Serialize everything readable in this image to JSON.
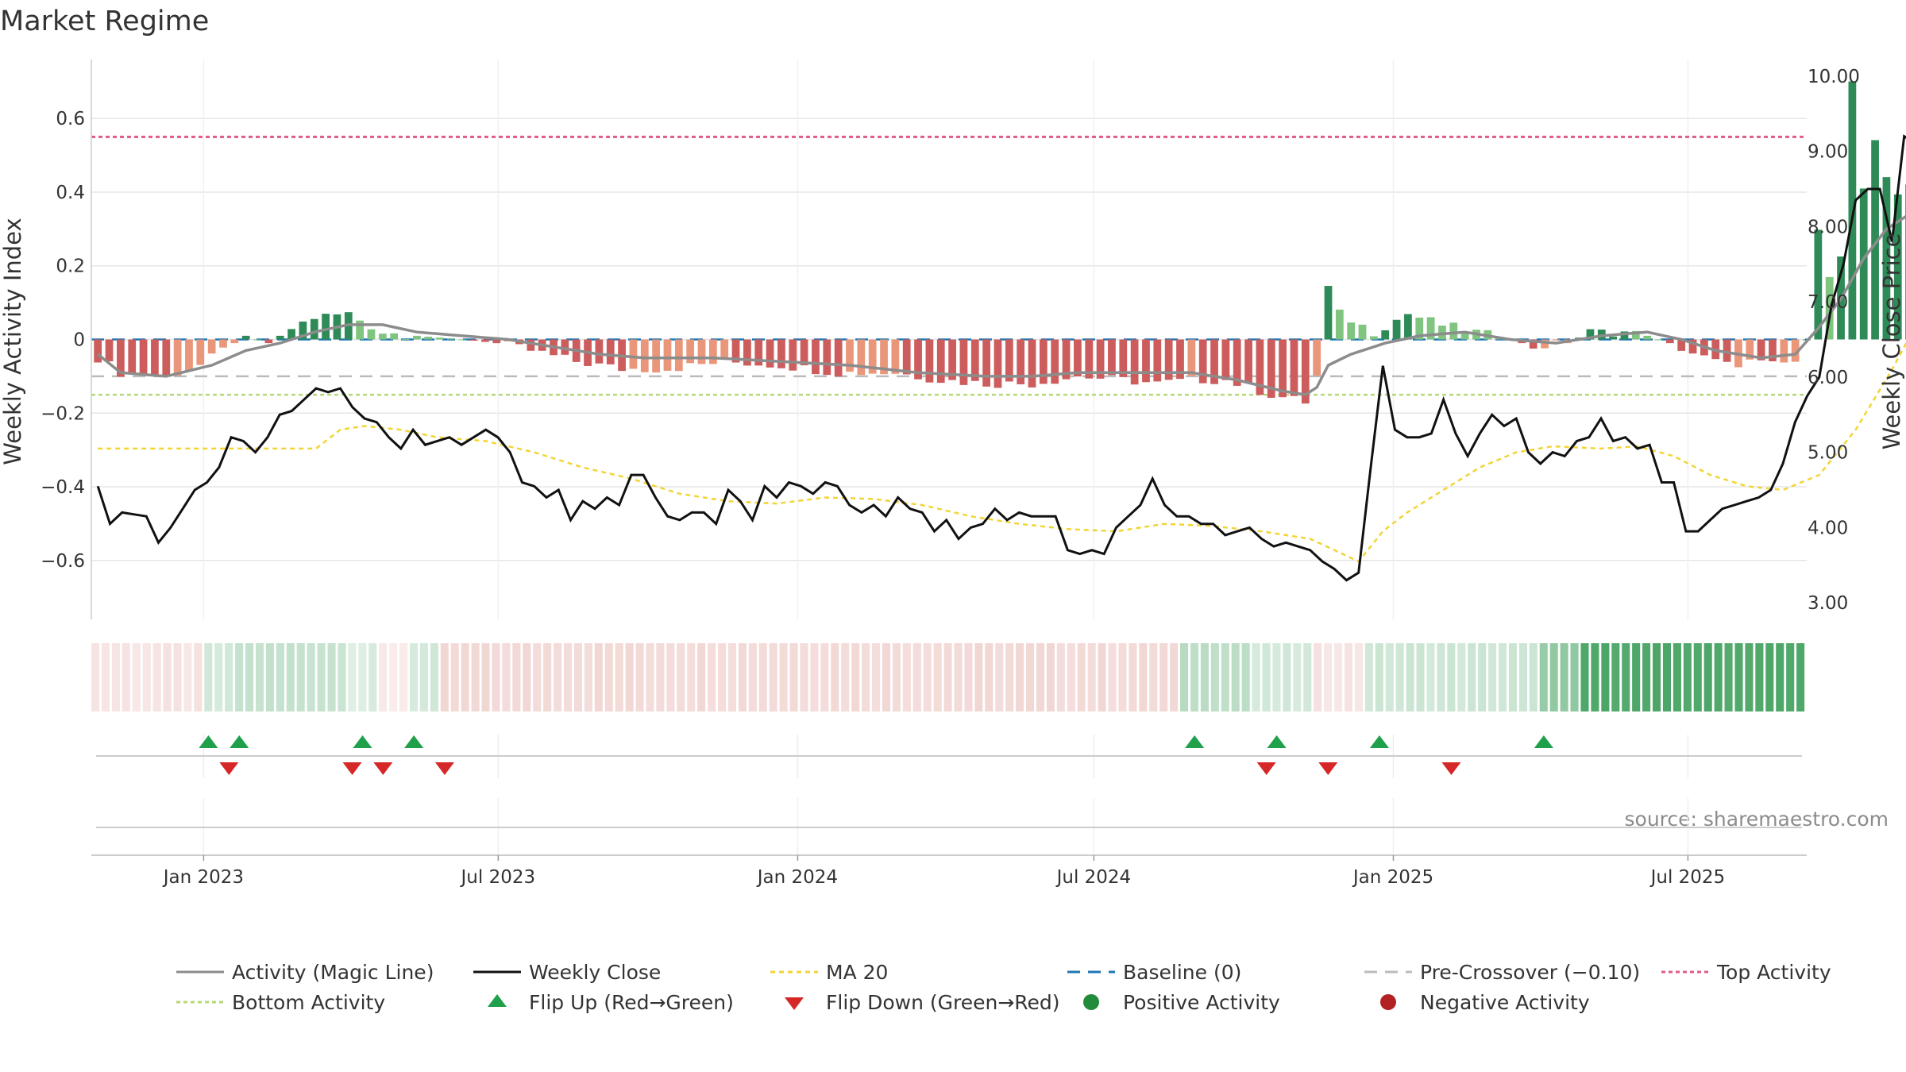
{
  "title": "Market Regime",
  "source": "source: sharemaestro.com",
  "colors": {
    "pos_dark": "#2e8b57",
    "pos_light": "#7fc47f",
    "neg_dark": "#cd5c5c",
    "neg_light": "#e9967a",
    "magic": "#8c8c8c",
    "close": "#111111",
    "ma": "#f2d535",
    "baseline": "#1f77b4",
    "pre": "#bbbbbb",
    "top": "#e05a8a",
    "bottom": "#b5d977",
    "flip_up": "#1fa04a",
    "flip_down": "#d62728",
    "regime_pos": "#3d9e5a",
    "regime_neg": "#cd6b60"
  },
  "legend": {
    "magic": "Activity (Magic Line)",
    "close": "Weekly Close",
    "ma": "MA 20",
    "baseline": "Baseline (0)",
    "pre": "Pre-Crossover (−0.10)",
    "top": "Top Activity",
    "bottom": "Bottom Activity",
    "flip_up": "Flip Up (Red→Green)",
    "flip_down": "Flip Down (Green→Red)",
    "positive": "Positive Activity",
    "negative": "Negative Activity"
  },
  "chart_data": {
    "type": "bar",
    "ylabel_left": "Weekly Activity Index",
    "ylabel_right": "Weekly Close Price",
    "yticks_left": [
      "0.6",
      "0.4",
      "0.2",
      "0",
      "−0.2",
      "−0.4",
      "−0.6"
    ],
    "ytick_values_left": [
      0.6,
      0.4,
      0.2,
      0,
      -0.2,
      -0.4,
      -0.6
    ],
    "yticks_right": [
      "10.00",
      "9.00",
      "8.00",
      "7.00",
      "6.00",
      "5.00",
      "4.00",
      "3.00"
    ],
    "ytick_values_right": [
      10,
      9,
      8,
      7,
      6,
      5,
      4,
      3
    ],
    "ylim_left": [
      -0.76,
      0.76
    ],
    "ylim_right": [
      2.78,
      10.22
    ],
    "xlim": [
      "2022-10-24",
      "2025-09-12"
    ],
    "xticks": [
      "Jan 2023",
      "Jul 2023",
      "Jan 2024",
      "Jul 2024",
      "Jan 2025",
      "Jul 2025"
    ],
    "xtick_dates": [
      "2023-01-01",
      "2023-07-01",
      "2024-01-01",
      "2024-07-01",
      "2025-01-01",
      "2025-07-01"
    ],
    "lines": {
      "baseline": 0,
      "pre_crossover": -0.1,
      "top": 0.55,
      "bottom": -0.15
    },
    "grid": true,
    "start_week": "2022-10-28",
    "activity_anchors": [
      [
        0,
        -0.05
      ],
      [
        2,
        -0.09
      ],
      [
        6,
        -0.1
      ],
      [
        9,
        -0.07
      ],
      [
        11,
        -0.03
      ],
      [
        13,
        0.01
      ],
      [
        15,
        -0.01
      ],
      [
        17,
        0.03
      ],
      [
        19,
        0.06
      ],
      [
        22,
        0.07
      ],
      [
        25,
        0.02
      ],
      [
        28,
        0.01
      ],
      [
        32,
        0.0
      ],
      [
        35,
        -0.01
      ],
      [
        38,
        -0.03
      ],
      [
        42,
        -0.06
      ],
      [
        46,
        -0.08
      ],
      [
        50,
        -0.08
      ],
      [
        55,
        -0.06
      ],
      [
        60,
        -0.07
      ],
      [
        65,
        -0.09
      ],
      [
        70,
        -0.09
      ],
      [
        74,
        -0.11
      ],
      [
        78,
        -0.12
      ],
      [
        82,
        -0.12
      ],
      [
        86,
        -0.1
      ],
      [
        90,
        -0.11
      ],
      [
        93,
        -0.12
      ],
      [
        96,
        -0.11
      ],
      [
        99,
        -0.11
      ],
      [
        103,
        -0.15
      ],
      [
        106,
        -0.17
      ],
      [
        107,
        -0.1
      ],
      [
        108,
        0.14
      ],
      [
        109,
        0.07
      ],
      [
        112,
        0.02
      ],
      [
        115,
        0.07
      ],
      [
        118,
        0.04
      ],
      [
        121,
        0.02
      ],
      [
        124,
        0.0
      ],
      [
        126,
        -0.02
      ],
      [
        129,
        -0.01
      ],
      [
        131,
        0.02
      ],
      [
        134,
        0.02
      ],
      [
        136,
        0.01
      ],
      [
        138,
        -0.01
      ],
      [
        141,
        -0.05
      ],
      [
        143,
        -0.07
      ],
      [
        145,
        -0.06
      ],
      [
        147,
        -0.07
      ],
      [
        149,
        -0.06
      ],
      [
        150,
        0.0
      ],
      [
        151,
        0.31
      ],
      [
        152,
        0.18
      ],
      [
        153,
        0.22
      ],
      [
        154,
        0.7
      ],
      [
        155,
        0.4
      ],
      [
        156,
        0.53
      ],
      [
        157,
        0.44
      ],
      [
        158,
        0.4
      ],
      [
        160,
        0.45
      ],
      [
        161,
        0.52
      ],
      [
        162,
        0.5
      ],
      [
        163,
        0.49
      ],
      [
        164,
        0.38
      ],
      [
        165,
        0.4
      ],
      [
        166,
        0.44
      ]
    ],
    "magic_anchors": [
      [
        0,
        -0.04
      ],
      [
        2,
        -0.09
      ],
      [
        6,
        -0.1
      ],
      [
        10,
        -0.07
      ],
      [
        13,
        -0.03
      ],
      [
        16,
        -0.01
      ],
      [
        19,
        0.02
      ],
      [
        22,
        0.04
      ],
      [
        25,
        0.04
      ],
      [
        28,
        0.02
      ],
      [
        32,
        0.01
      ],
      [
        36,
        0.0
      ],
      [
        40,
        -0.02
      ],
      [
        44,
        -0.04
      ],
      [
        48,
        -0.05
      ],
      [
        54,
        -0.05
      ],
      [
        60,
        -0.06
      ],
      [
        66,
        -0.07
      ],
      [
        72,
        -0.09
      ],
      [
        78,
        -0.1
      ],
      [
        82,
        -0.1
      ],
      [
        86,
        -0.09
      ],
      [
        90,
        -0.09
      ],
      [
        96,
        -0.09
      ],
      [
        100,
        -0.11
      ],
      [
        104,
        -0.14
      ],
      [
        106,
        -0.15
      ],
      [
        107,
        -0.13
      ],
      [
        108,
        -0.07
      ],
      [
        110,
        -0.04
      ],
      [
        113,
        -0.01
      ],
      [
        116,
        0.01
      ],
      [
        120,
        0.02
      ],
      [
        124,
        0.0
      ],
      [
        128,
        -0.01
      ],
      [
        132,
        0.01
      ],
      [
        136,
        0.02
      ],
      [
        139,
        0.0
      ],
      [
        142,
        -0.03
      ],
      [
        146,
        -0.05
      ],
      [
        149,
        -0.04
      ],
      [
        151,
        0.03
      ],
      [
        153,
        0.11
      ],
      [
        155,
        0.22
      ],
      [
        157,
        0.3
      ],
      [
        159,
        0.34
      ],
      [
        161,
        0.38
      ],
      [
        163,
        0.42
      ],
      [
        164,
        0.43
      ],
      [
        166,
        0.43
      ]
    ],
    "close_anchors": [
      [
        0,
        4.55
      ],
      [
        1,
        4.05
      ],
      [
        2,
        4.2
      ],
      [
        4,
        4.15
      ],
      [
        5,
        3.8
      ],
      [
        6,
        4.0
      ],
      [
        8,
        4.5
      ],
      [
        9,
        4.6
      ],
      [
        10,
        4.8
      ],
      [
        11,
        5.2
      ],
      [
        12,
        5.15
      ],
      [
        13,
        5.0
      ],
      [
        14,
        5.2
      ],
      [
        15,
        5.5
      ],
      [
        16,
        5.55
      ],
      [
        17,
        5.7
      ],
      [
        18,
        5.85
      ],
      [
        19,
        5.8
      ],
      [
        20,
        5.85
      ],
      [
        21,
        5.6
      ],
      [
        22,
        5.45
      ],
      [
        23,
        5.4
      ],
      [
        24,
        5.2
      ],
      [
        25,
        5.05
      ],
      [
        26,
        5.3
      ],
      [
        27,
        5.1
      ],
      [
        28,
        5.15
      ],
      [
        29,
        5.2
      ],
      [
        30,
        5.1
      ],
      [
        31,
        5.2
      ],
      [
        32,
        5.3
      ],
      [
        33,
        5.2
      ],
      [
        34,
        5.0
      ],
      [
        35,
        4.6
      ],
      [
        36,
        4.55
      ],
      [
        37,
        4.4
      ],
      [
        38,
        4.5
      ],
      [
        39,
        4.1
      ],
      [
        40,
        4.35
      ],
      [
        41,
        4.25
      ],
      [
        42,
        4.4
      ],
      [
        43,
        4.3
      ],
      [
        44,
        4.7
      ],
      [
        45,
        4.7
      ],
      [
        46,
        4.4
      ],
      [
        47,
        4.15
      ],
      [
        48,
        4.1
      ],
      [
        49,
        4.2
      ],
      [
        50,
        4.2
      ],
      [
        51,
        4.05
      ],
      [
        52,
        4.5
      ],
      [
        53,
        4.35
      ],
      [
        54,
        4.1
      ],
      [
        55,
        4.55
      ],
      [
        56,
        4.4
      ],
      [
        57,
        4.6
      ],
      [
        58,
        4.55
      ],
      [
        59,
        4.45
      ],
      [
        60,
        4.6
      ],
      [
        61,
        4.55
      ],
      [
        62,
        4.3
      ],
      [
        63,
        4.2
      ],
      [
        64,
        4.3
      ],
      [
        65,
        4.15
      ],
      [
        66,
        4.4
      ],
      [
        67,
        4.25
      ],
      [
        68,
        4.2
      ],
      [
        69,
        3.95
      ],
      [
        70,
        4.1
      ],
      [
        71,
        3.85
      ],
      [
        72,
        4.0
      ],
      [
        73,
        4.05
      ],
      [
        74,
        4.25
      ],
      [
        75,
        4.1
      ],
      [
        76,
        4.2
      ],
      [
        77,
        4.15
      ],
      [
        78,
        4.15
      ],
      [
        79,
        4.15
      ],
      [
        80,
        3.7
      ],
      [
        81,
        3.65
      ],
      [
        82,
        3.7
      ],
      [
        83,
        3.65
      ],
      [
        84,
        4.0
      ],
      [
        85,
        4.15
      ],
      [
        86,
        4.3
      ],
      [
        87,
        4.65
      ],
      [
        88,
        4.3
      ],
      [
        89,
        4.15
      ],
      [
        90,
        4.15
      ],
      [
        91,
        4.05
      ],
      [
        92,
        4.05
      ],
      [
        93,
        3.9
      ],
      [
        94,
        3.95
      ],
      [
        95,
        4.0
      ],
      [
        96,
        3.85
      ],
      [
        97,
        3.75
      ],
      [
        98,
        3.8
      ],
      [
        99,
        3.75
      ],
      [
        100,
        3.7
      ],
      [
        101,
        3.55
      ],
      [
        102,
        3.45
      ],
      [
        103,
        3.3
      ],
      [
        104,
        3.4
      ],
      [
        105,
        4.8
      ],
      [
        106,
        6.15
      ],
      [
        107,
        5.3
      ],
      [
        108,
        5.2
      ],
      [
        109,
        5.2
      ],
      [
        110,
        5.25
      ],
      [
        111,
        5.7
      ],
      [
        112,
        5.25
      ],
      [
        113,
        4.95
      ],
      [
        114,
        5.25
      ],
      [
        115,
        5.5
      ],
      [
        116,
        5.35
      ],
      [
        117,
        5.45
      ],
      [
        118,
        5.0
      ],
      [
        119,
        4.85
      ],
      [
        120,
        5.0
      ],
      [
        121,
        4.95
      ],
      [
        122,
        5.15
      ],
      [
        123,
        5.2
      ],
      [
        124,
        5.45
      ],
      [
        125,
        5.15
      ],
      [
        126,
        5.2
      ],
      [
        127,
        5.05
      ],
      [
        128,
        5.1
      ],
      [
        129,
        4.6
      ],
      [
        130,
        4.6
      ],
      [
        131,
        3.95
      ],
      [
        132,
        3.95
      ],
      [
        133,
        4.1
      ],
      [
        134,
        4.25
      ],
      [
        135,
        4.3
      ],
      [
        136,
        4.35
      ],
      [
        137,
        4.4
      ],
      [
        138,
        4.5
      ],
      [
        139,
        4.85
      ],
      [
        140,
        5.4
      ],
      [
        141,
        5.75
      ],
      [
        142,
        6.0
      ],
      [
        143,
        6.95
      ],
      [
        144,
        7.5
      ],
      [
        145,
        8.35
      ],
      [
        146,
        8.5
      ],
      [
        147,
        8.5
      ],
      [
        148,
        7.8
      ],
      [
        149,
        9.2
      ],
      [
        150,
        9.1
      ],
      [
        151,
        9.8
      ],
      [
        152,
        8.95
      ],
      [
        153,
        8.8
      ],
      [
        154,
        8.95
      ],
      [
        155,
        9.15
      ],
      [
        156,
        9.35
      ]
    ],
    "ma_anchors": [
      [
        0,
        5.05
      ],
      [
        5,
        5.05
      ],
      [
        10,
        5.05
      ],
      [
        18,
        5.05
      ],
      [
        20,
        5.3
      ],
      [
        22,
        5.35
      ],
      [
        25,
        5.3
      ],
      [
        28,
        5.2
      ],
      [
        32,
        5.15
      ],
      [
        36,
        5.0
      ],
      [
        40,
        4.8
      ],
      [
        44,
        4.65
      ],
      [
        48,
        4.45
      ],
      [
        52,
        4.35
      ],
      [
        56,
        4.32
      ],
      [
        60,
        4.4
      ],
      [
        64,
        4.38
      ],
      [
        68,
        4.3
      ],
      [
        72,
        4.15
      ],
      [
        76,
        4.05
      ],
      [
        80,
        3.98
      ],
      [
        84,
        3.95
      ],
      [
        88,
        4.05
      ],
      [
        92,
        4.02
      ],
      [
        96,
        3.95
      ],
      [
        100,
        3.85
      ],
      [
        104,
        3.55
      ],
      [
        106,
        3.95
      ],
      [
        108,
        4.2
      ],
      [
        111,
        4.5
      ],
      [
        114,
        4.8
      ],
      [
        117,
        5.0
      ],
      [
        120,
        5.08
      ],
      [
        124,
        5.05
      ],
      [
        127,
        5.08
      ],
      [
        130,
        4.95
      ],
      [
        133,
        4.7
      ],
      [
        136,
        4.55
      ],
      [
        139,
        4.5
      ],
      [
        142,
        4.7
      ],
      [
        145,
        5.3
      ],
      [
        148,
        6.1
      ],
      [
        151,
        7.0
      ],
      [
        154,
        7.7
      ],
      [
        156,
        8.1
      ]
    ],
    "flip_up_weeks": [
      11,
      14,
      26,
      31,
      107,
      115,
      125,
      141
    ],
    "flip_down_weeks": [
      13,
      25,
      28,
      34,
      114,
      120,
      132
    ],
    "regime": [
      {
        "from": 0,
        "to": 10,
        "sign": "neg",
        "strength": 0.18
      },
      {
        "from": 11,
        "to": 13,
        "sign": "pos",
        "strength": 0.22
      },
      {
        "from": 14,
        "to": 24,
        "sign": "pos",
        "strength": 0.3
      },
      {
        "from": 25,
        "to": 27,
        "sign": "pos",
        "strength": 0.18
      },
      {
        "from": 28,
        "to": 30,
        "sign": "neg",
        "strength": 0.14
      },
      {
        "from": 31,
        "to": 33,
        "sign": "pos",
        "strength": 0.22
      },
      {
        "from": 34,
        "to": 105,
        "sign": "neg",
        "strength": 0.25
      },
      {
        "from": 106,
        "to": 112,
        "sign": "pos",
        "strength": 0.35
      },
      {
        "from": 113,
        "to": 118,
        "sign": "pos",
        "strength": 0.22
      },
      {
        "from": 119,
        "to": 123,
        "sign": "neg",
        "strength": 0.18
      },
      {
        "from": 124,
        "to": 140,
        "sign": "pos",
        "strength": 0.25
      },
      {
        "from": 141,
        "to": 144,
        "sign": "pos",
        "strength": 0.55
      },
      {
        "from": 145,
        "to": 166,
        "sign": "pos",
        "strength": 0.9
      }
    ]
  }
}
